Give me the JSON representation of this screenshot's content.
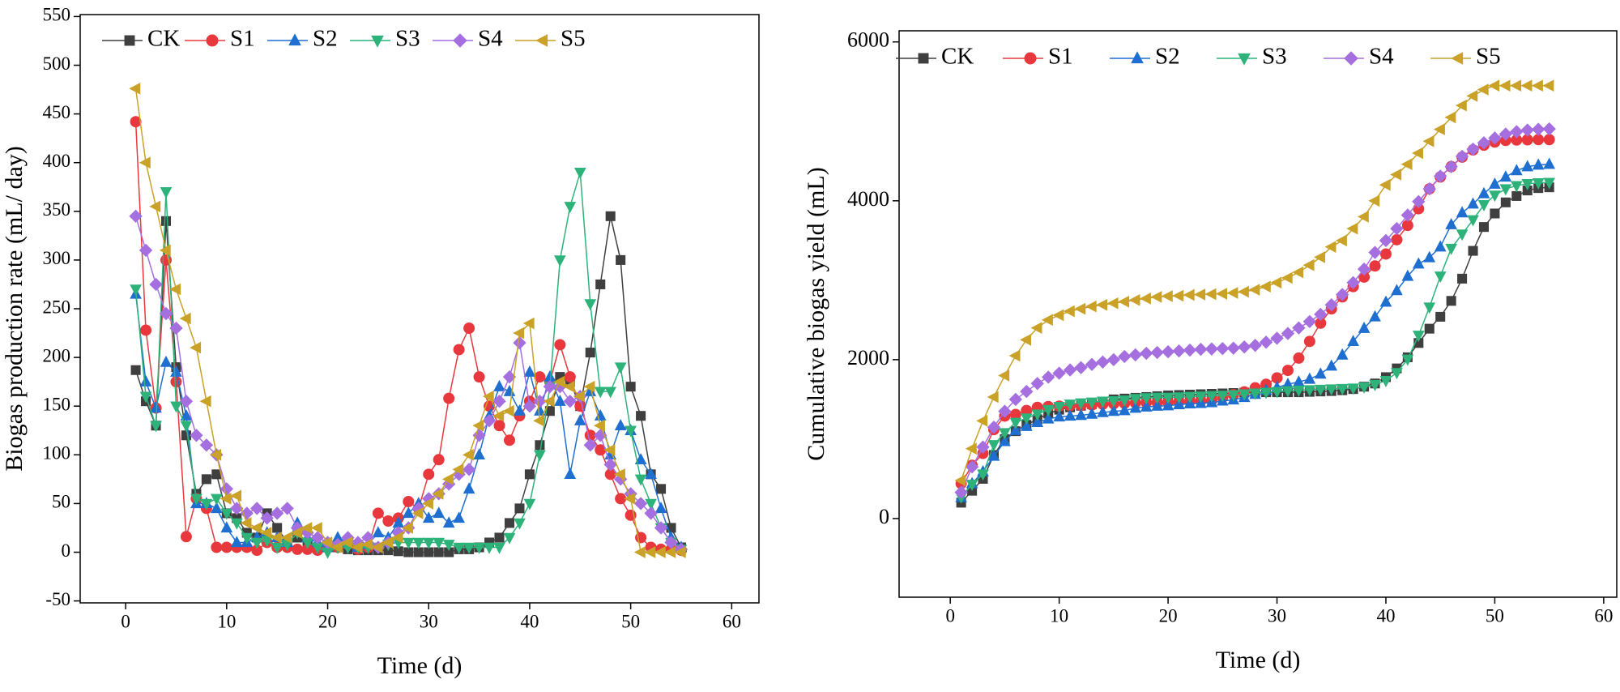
{
  "chart_data": [
    {
      "type": "line",
      "xlabel": "Time (d)",
      "ylabel": "Biogas production rate (mL/ day)",
      "xlim": [
        -4.5,
        62.7
      ],
      "xticks": [
        0,
        10,
        20,
        30,
        40,
        50,
        60
      ],
      "ylim": [
        -52,
        552
      ],
      "yticks": [
        -50,
        0,
        50,
        100,
        150,
        200,
        250,
        300,
        350,
        400,
        450,
        500,
        550
      ],
      "x": [
        1,
        2,
        3,
        4,
        5,
        6,
        7,
        8,
        9,
        10,
        11,
        12,
        13,
        14,
        15,
        16,
        17,
        18,
        19,
        20,
        21,
        22,
        23,
        24,
        25,
        26,
        27,
        28,
        29,
        30,
        31,
        32,
        33,
        34,
        35,
        36,
        37,
        38,
        39,
        40,
        41,
        42,
        43,
        44,
        45,
        46,
        47,
        48,
        49,
        50,
        51,
        52,
        53,
        54,
        55
      ],
      "series": [
        {
          "name": "CK",
          "color": "#3f3f3f",
          "marker": "square",
          "values": [
            187,
            155,
            130,
            340,
            190,
            120,
            60,
            75,
            80,
            40,
            35,
            20,
            15,
            40,
            25,
            10,
            15,
            10,
            5,
            5,
            5,
            3,
            2,
            2,
            2,
            2,
            1,
            0,
            0,
            0,
            0,
            0,
            3,
            3,
            5,
            10,
            15,
            30,
            45,
            80,
            110,
            145,
            180,
            175,
            150,
            205,
            275,
            345,
            300,
            170,
            140,
            80,
            65,
            25,
            5
          ]
        },
        {
          "name": "S1",
          "color": "#e8383d",
          "marker": "circle",
          "values": [
            442,
            228,
            148,
            300,
            175,
            16,
            55,
            45,
            5,
            5,
            5,
            5,
            2,
            10,
            5,
            5,
            3,
            3,
            2,
            5,
            5,
            8,
            3,
            5,
            40,
            32,
            35,
            52,
            45,
            80,
            95,
            158,
            208,
            230,
            180,
            150,
            130,
            115,
            140,
            155,
            180,
            175,
            213,
            180,
            150,
            120,
            105,
            80,
            55,
            38,
            15,
            5,
            3,
            3,
            2
          ]
        },
        {
          "name": "S2",
          "color": "#1f6fd1",
          "marker": "triangle-up",
          "values": [
            265,
            175,
            148,
            195,
            185,
            140,
            50,
            50,
            45,
            25,
            10,
            10,
            15,
            20,
            15,
            10,
            30,
            15,
            10,
            5,
            15,
            10,
            5,
            8,
            20,
            15,
            30,
            40,
            50,
            35,
            40,
            30,
            35,
            65,
            100,
            140,
            170,
            165,
            145,
            185,
            145,
            180,
            155,
            80,
            135,
            165,
            140,
            100,
            130,
            125,
            95,
            80,
            45,
            15,
            5
          ]
        },
        {
          "name": "S3",
          "color": "#2db37a",
          "marker": "triangle-down",
          "values": [
            270,
            160,
            130,
            370,
            150,
            130,
            55,
            50,
            55,
            40,
            30,
            15,
            10,
            12,
            5,
            8,
            20,
            10,
            5,
            0,
            5,
            5,
            5,
            5,
            5,
            8,
            10,
            10,
            10,
            10,
            10,
            8,
            5,
            5,
            5,
            5,
            5,
            15,
            30,
            50,
            100,
            170,
            300,
            355,
            390,
            255,
            165,
            165,
            190,
            125,
            75,
            50,
            25,
            10,
            3
          ]
        },
        {
          "name": "S4",
          "color": "#a66fe0",
          "marker": "diamond",
          "values": [
            345,
            310,
            275,
            245,
            230,
            155,
            120,
            110,
            100,
            65,
            45,
            40,
            45,
            35,
            40,
            45,
            25,
            20,
            15,
            10,
            8,
            15,
            10,
            15,
            5,
            10,
            20,
            25,
            45,
            55,
            60,
            70,
            80,
            85,
            120,
            135,
            155,
            180,
            215,
            150,
            155,
            170,
            170,
            155,
            160,
            110,
            120,
            90,
            75,
            60,
            50,
            40,
            25,
            10,
            3
          ]
        },
        {
          "name": "S5",
          "color": "#c9a227",
          "marker": "triangle-left",
          "values": [
            476,
            400,
            355,
            310,
            270,
            240,
            210,
            155,
            100,
            55,
            58,
            30,
            25,
            20,
            15,
            15,
            20,
            25,
            25,
            10,
            5,
            10,
            5,
            8,
            5,
            10,
            15,
            25,
            40,
            50,
            60,
            75,
            85,
            100,
            130,
            160,
            140,
            145,
            225,
            235,
            135,
            155,
            175,
            170,
            160,
            170,
            130,
            105,
            80,
            55,
            0,
            0,
            0,
            0,
            0
          ]
        }
      ]
    },
    {
      "type": "line",
      "xlabel": "Time (d)",
      "ylabel": "Cumulative biogas yield (mL)",
      "xlim": [
        -4.7,
        61.2
      ],
      "xticks": [
        0,
        10,
        20,
        30,
        40,
        50,
        60
      ],
      "ylim": [
        -990,
        6140
      ],
      "yticks": [
        0,
        2000,
        4000,
        6000
      ],
      "x": [
        1,
        2,
        3,
        4,
        5,
        6,
        7,
        8,
        9,
        10,
        11,
        12,
        13,
        14,
        15,
        16,
        17,
        18,
        19,
        20,
        21,
        22,
        23,
        24,
        25,
        26,
        27,
        28,
        29,
        30,
        31,
        32,
        33,
        34,
        35,
        36,
        37,
        38,
        39,
        40,
        41,
        42,
        43,
        44,
        45,
        46,
        47,
        48,
        49,
        50,
        51,
        52,
        53,
        54,
        55
      ],
      "series": [
        {
          "name": "CK",
          "color": "#3f3f3f",
          "marker": "square",
          "values": [
            200,
            350,
            500,
            800,
            1000,
            1100,
            1180,
            1250,
            1320,
            1370,
            1400,
            1420,
            1440,
            1470,
            1500,
            1510,
            1520,
            1530,
            1540,
            1550,
            1555,
            1560,
            1565,
            1570,
            1575,
            1580,
            1585,
            1590,
            1590,
            1590,
            1590,
            1590,
            1595,
            1600,
            1605,
            1615,
            1630,
            1660,
            1700,
            1780,
            1890,
            2030,
            2210,
            2390,
            2540,
            2740,
            3020,
            3370,
            3670,
            3840,
            3980,
            4060,
            4130,
            4160,
            4170
          ]
        },
        {
          "name": "S1",
          "color": "#e8383d",
          "marker": "circle",
          "values": [
            440,
            670,
            820,
            1120,
            1290,
            1310,
            1360,
            1400,
            1410,
            1415,
            1420,
            1425,
            1430,
            1440,
            1445,
            1450,
            1455,
            1460,
            1460,
            1465,
            1470,
            1478,
            1480,
            1485,
            1525,
            1560,
            1595,
            1645,
            1690,
            1770,
            1865,
            2020,
            2230,
            2460,
            2640,
            2790,
            2920,
            3040,
            3180,
            3330,
            3510,
            3690,
            3900,
            4150,
            4300,
            4430,
            4550,
            4640,
            4700,
            4740,
            4760,
            4765,
            4768,
            4770,
            4770
          ]
        },
        {
          "name": "S2",
          "color": "#1f6fd1",
          "marker": "triangle-up",
          "values": [
            265,
            440,
            590,
            785,
            970,
            1110,
            1160,
            1210,
            1255,
            1280,
            1290,
            1300,
            1315,
            1335,
            1350,
            1360,
            1390,
            1405,
            1415,
            1420,
            1435,
            1445,
            1450,
            1460,
            1480,
            1495,
            1525,
            1565,
            1615,
            1650,
            1690,
            1720,
            1755,
            1820,
            1920,
            2060,
            2230,
            2395,
            2540,
            2725,
            2870,
            3050,
            3205,
            3285,
            3420,
            3700,
            3850,
            3960,
            4090,
            4210,
            4300,
            4380,
            4430,
            4450,
            4460
          ]
        },
        {
          "name": "S3",
          "color": "#2db37a",
          "marker": "triangle-down",
          "values": [
            270,
            430,
            560,
            930,
            1080,
            1210,
            1265,
            1315,
            1370,
            1410,
            1440,
            1455,
            1465,
            1477,
            1482,
            1490,
            1510,
            1520,
            1525,
            1525,
            1530,
            1535,
            1540,
            1545,
            1550,
            1558,
            1568,
            1578,
            1588,
            1598,
            1608,
            1616,
            1621,
            1626,
            1631,
            1636,
            1641,
            1656,
            1686,
            1736,
            1836,
            2006,
            2306,
            2661,
            3051,
            3400,
            3580,
            3760,
            3950,
            4070,
            4150,
            4190,
            4215,
            4225,
            4230
          ]
        },
        {
          "name": "S4",
          "color": "#a66fe0",
          "marker": "diamond",
          "values": [
            330,
            650,
            900,
            1150,
            1350,
            1500,
            1600,
            1700,
            1780,
            1830,
            1870,
            1900,
            1940,
            1970,
            2000,
            2040,
            2060,
            2080,
            2090,
            2100,
            2110,
            2120,
            2130,
            2135,
            2140,
            2145,
            2160,
            2180,
            2220,
            2270,
            2330,
            2400,
            2480,
            2570,
            2690,
            2820,
            2970,
            3140,
            3350,
            3500,
            3650,
            3820,
            3990,
            4150,
            4310,
            4430,
            4560,
            4650,
            4730,
            4790,
            4840,
            4870,
            4890,
            4900,
            4905
          ]
        },
        {
          "name": "S5",
          "color": "#c9a227",
          "marker": "triangle-left",
          "values": [
            480,
            880,
            1230,
            1530,
            1800,
            2050,
            2250,
            2400,
            2500,
            2560,
            2610,
            2640,
            2670,
            2690,
            2710,
            2730,
            2750,
            2770,
            2790,
            2800,
            2805,
            2815,
            2820,
            2825,
            2830,
            2840,
            2855,
            2880,
            2920,
            2970,
            3030,
            3100,
            3190,
            3290,
            3420,
            3500,
            3650,
            3800,
            4000,
            4200,
            4330,
            4460,
            4600,
            4750,
            4900,
            5050,
            5200,
            5320,
            5400,
            5450,
            5450,
            5450,
            5450,
            5450,
            5450
          ]
        }
      ]
    }
  ]
}
